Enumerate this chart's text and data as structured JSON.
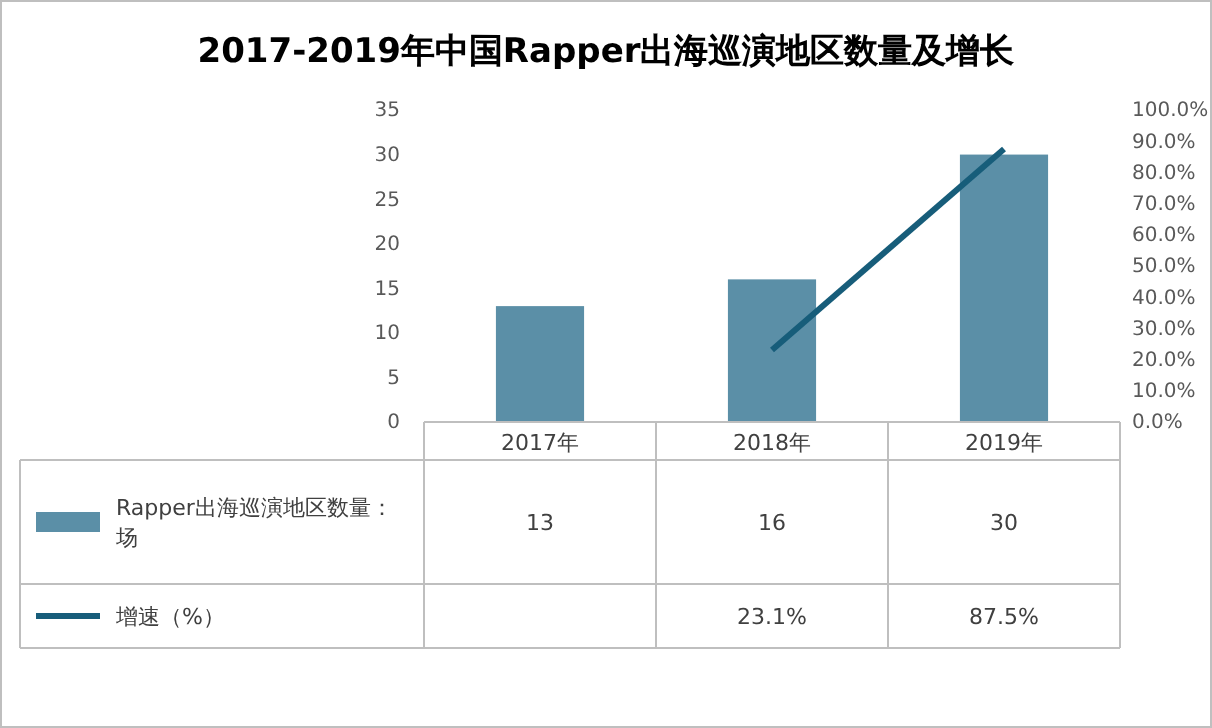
{
  "chart_data": {
    "type": "bar",
    "title": "2017-2019年中国Rapper出海巡演地区数量及增长",
    "categories": [
      "2017年",
      "2018年",
      "2019年"
    ],
    "series": [
      {
        "name": "Rapper出海巡演地区数量：场",
        "color": "#5b8fa7",
        "values": [
          13,
          16,
          30
        ],
        "value_labels": [
          "13",
          "16",
          "30"
        ]
      },
      {
        "name": "增速（%）",
        "type": "line",
        "axis": "y2",
        "color": "#175d7a",
        "values": [
          null,
          23.1,
          87.5
        ],
        "value_labels": [
          null,
          "23.1%",
          "87.5%"
        ]
      }
    ],
    "ylim": [
      0,
      35
    ],
    "yticks": [
      0,
      5,
      10,
      15,
      20,
      25,
      30,
      35
    ],
    "y2lim": [
      0,
      100
    ],
    "y2ticks": [
      {
        "value": 0,
        "label": "0.0%"
      },
      {
        "value": 10,
        "label": "10.0%"
      },
      {
        "value": 20,
        "label": "20.0%"
      },
      {
        "value": 30,
        "label": "30.0%"
      },
      {
        "value": 40,
        "label": "40.0%"
      },
      {
        "value": 50,
        "label": "50.0%"
      },
      {
        "value": 60,
        "label": "60.0%"
      },
      {
        "value": 70,
        "label": "70.0%"
      },
      {
        "value": 80,
        "label": "80.0%"
      },
      {
        "value": 90,
        "label": "90.0%"
      },
      {
        "value": 100,
        "label": "100.0%"
      }
    ],
    "grid": false,
    "legend": "bottom"
  }
}
